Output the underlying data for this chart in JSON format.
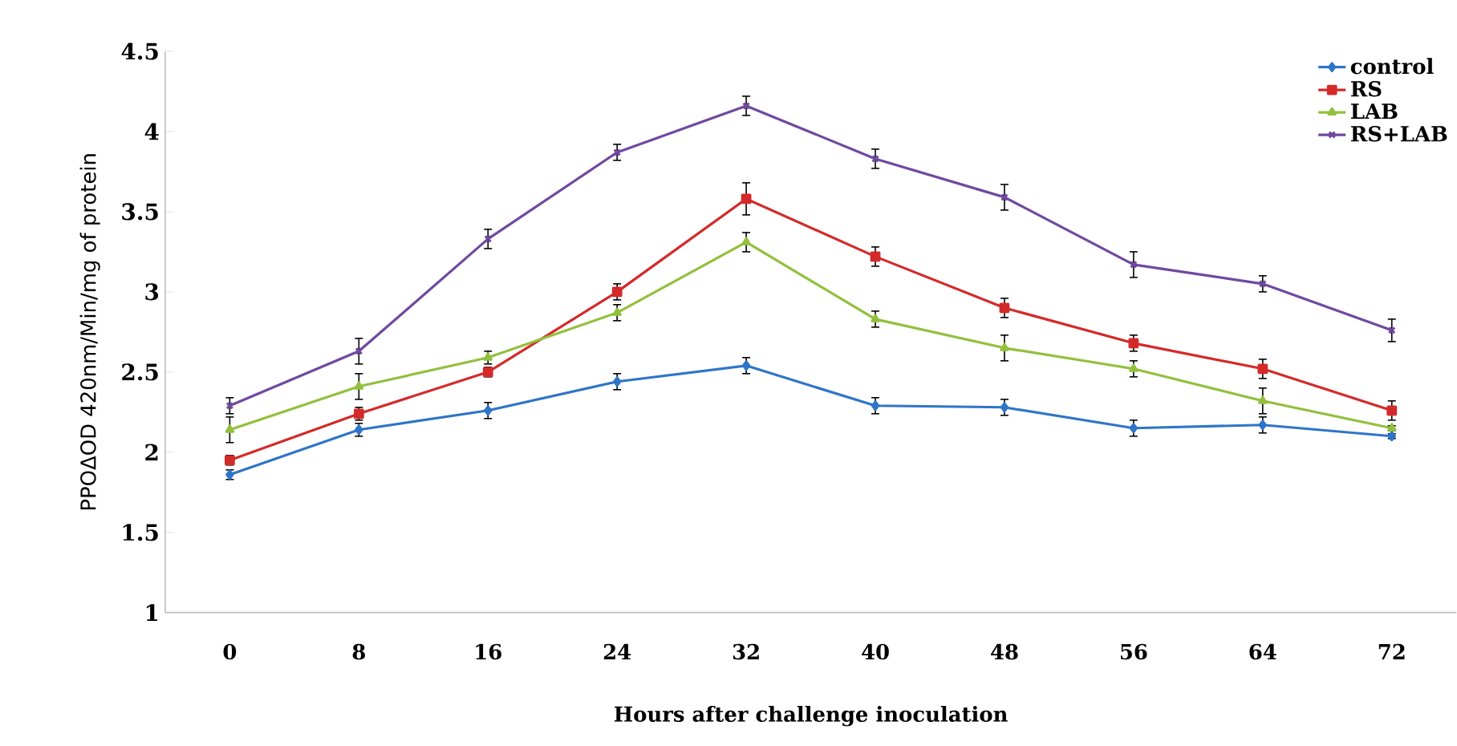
{
  "chart_data": {
    "type": "line",
    "xlabel": "Hours after challenge inoculation",
    "ylabel": "PPOΔOD 420nm/Min/mg of protein",
    "categories": [
      "0",
      "8",
      "16",
      "24",
      "32",
      "40",
      "48",
      "56",
      "64",
      "72"
    ],
    "ylim": [
      1,
      4.5
    ],
    "yticks": [
      1,
      1.5,
      2,
      2.5,
      3,
      3.5,
      4,
      4.5
    ],
    "grid": false,
    "legend": "top right",
    "line_style": "solid",
    "series": [
      {
        "name": "control",
        "color": "#2e75c8",
        "marker": "diamond",
        "values": [
          1.86,
          2.14,
          2.26,
          2.44,
          2.54,
          2.29,
          2.28,
          2.15,
          2.17,
          2.1
        ],
        "errors": [
          0.03,
          0.04,
          0.05,
          0.05,
          0.05,
          0.05,
          0.05,
          0.05,
          0.05,
          0.015
        ]
      },
      {
        "name": "RS",
        "color": "#d42a2a",
        "marker": "square",
        "values": [
          1.95,
          2.24,
          2.5,
          3.0,
          3.58,
          3.22,
          2.9,
          2.68,
          2.52,
          2.26
        ],
        "errors": [
          0.03,
          0.04,
          0.03,
          0.05,
          0.1,
          0.06,
          0.06,
          0.05,
          0.06,
          0.06
        ]
      },
      {
        "name": "LAB",
        "color": "#92c03c",
        "marker": "triangle",
        "values": [
          2.14,
          2.41,
          2.59,
          2.87,
          3.31,
          2.83,
          2.65,
          2.52,
          2.32,
          2.15
        ],
        "errors": [
          0.08,
          0.08,
          0.04,
          0.05,
          0.06,
          0.05,
          0.08,
          0.05,
          0.08,
          0.015
        ]
      },
      {
        "name": "RS+LAB",
        "color": "#7048a0",
        "marker": "cross",
        "values": [
          2.29,
          2.63,
          3.33,
          3.87,
          4.16,
          3.83,
          3.59,
          3.17,
          3.05,
          2.76
        ],
        "errors": [
          0.05,
          0.08,
          0.06,
          0.05,
          0.06,
          0.06,
          0.08,
          0.08,
          0.05,
          0.07
        ]
      }
    ]
  }
}
